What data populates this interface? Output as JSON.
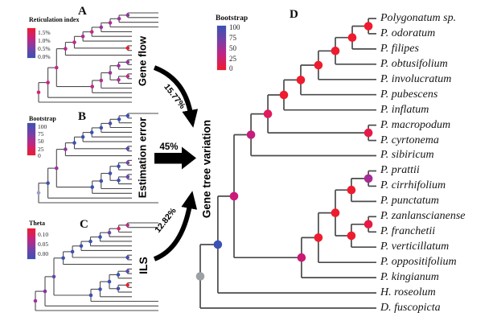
{
  "figure": {
    "center_label": "Gene tree variation",
    "colors": {
      "tree_line": "#4b4b4b",
      "arrow": "#000000",
      "scale_high_blue": "#3b51b4",
      "scale_mid_purple": "#7b3fa5",
      "scale_mid_magenta": "#c32482",
      "scale_low_red": "#ee1c2e",
      "root_gray": "#9da0a3"
    },
    "arrows": {
      "gene_flow": {
        "label": "15.77%"
      },
      "estimation_error": {
        "label": "45%"
      },
      "ils": {
        "label": "12.82%"
      }
    },
    "panels": {
      "a": {
        "letter": "A",
        "side_label": "Gene flow",
        "legend": {
          "title": "Reticulation index",
          "ticks": [
            "1.5%",
            "1.0%",
            "0.5%",
            "0.0%"
          ],
          "top_color": "#ee1c2e",
          "bottom_color": "#3b51b4"
        }
      },
      "b": {
        "letter": "B",
        "side_label": "Estimation error",
        "legend": {
          "title": "Bootstrap",
          "ticks": [
            "100",
            "75",
            "50",
            "25",
            "0"
          ],
          "top_color": "#3b51b4",
          "bottom_color": "#ee1c2e"
        }
      },
      "c": {
        "letter": "C",
        "side_label": "ILS",
        "legend": {
          "title": "Theta",
          "ticks": [
            "0.10",
            "0.05",
            "0.00"
          ],
          "top_color": "#ee1c2e",
          "bottom_color": "#3b51b4"
        }
      },
      "d": {
        "letter": "D",
        "legend": {
          "title": "Bootstrap",
          "ticks": [
            "100",
            "75",
            "50",
            "25",
            "0"
          ],
          "top_color": "#3b51b4",
          "bottom_color": "#ee1c2e"
        },
        "species": [
          "Polygonatum sp.",
          "P. odoratum",
          "P. filipes",
          "P. obtusifolium",
          "P. involucratum",
          "P. pubescens",
          "P. inflatum",
          "P. macropodum",
          "P. cyrtonema",
          "P. sibiricum",
          "P. prattii",
          "P. cirrhifolium",
          "P. punctatum",
          "P. zanlanscianense",
          "P. franchetii",
          "P. verticillatum",
          "P. oppositifolium",
          "P. kingianum",
          "H. roseolum",
          "D. fuscopicta"
        ]
      }
    },
    "chart_data": {
      "type": "phylogenetic-tree",
      "tip_count": 20,
      "note": "Rectangular cladogram shared by panels A-D. Tips indexed 0-19 top to bottom (names in panels.d.species). Internal nodes listed root-last; c = child indices (tips 0-19, internal 20+), x = relative depth (0 root, 1 tips).",
      "topology": {
        "tip_count": 20,
        "nodes": [
          {
            "c": [
              0,
              1
            ],
            "x": 0.955
          },
          {
            "c": [
              20,
              2
            ],
            "x": 0.863
          },
          {
            "c": [
              21,
              3
            ],
            "x": 0.767
          },
          {
            "c": [
              22,
              4
            ],
            "x": 0.671
          },
          {
            "c": [
              23,
              5
            ],
            "x": 0.571
          },
          {
            "c": [
              24,
              6
            ],
            "x": 0.475
          },
          {
            "c": [
              7,
              8
            ],
            "x": 0.955
          },
          {
            "c": [
              25,
              26
            ],
            "x": 0.384
          },
          {
            "c": [
              27,
              9
            ],
            "x": 0.288
          },
          {
            "c": [
              10,
              11
            ],
            "x": 0.955
          },
          {
            "c": [
              29,
              12
            ],
            "x": 0.858
          },
          {
            "c": [
              13,
              14
            ],
            "x": 0.955
          },
          {
            "c": [
              31,
              15
            ],
            "x": 0.858
          },
          {
            "c": [
              30,
              32
            ],
            "x": 0.767
          },
          {
            "c": [
              33,
              16
            ],
            "x": 0.671
          },
          {
            "c": [
              34,
              17
            ],
            "x": 0.575
          },
          {
            "c": [
              28,
              35
            ],
            "x": 0.192
          },
          {
            "c": [
              36,
              18
            ],
            "x": 0.1
          },
          {
            "c": [
              37,
              19
            ],
            "x": 0.0
          }
        ]
      },
      "node_colors": {
        "a": [
          "#8e35a2",
          "#a030a0",
          "#b02c96",
          "#a030a0",
          "#c02887",
          "#b02c96",
          "#ee1c2e",
          "#c02887",
          "#b82c90",
          "#8e35a2",
          "#a030a0",
          "#c02887",
          "#b02c96",
          "#a030a0",
          "#b82c90",
          "#c02887",
          "#c4278a",
          "#cc2581",
          "#d42378"
        ],
        "b": [
          "#3b51b4",
          "#3b51b4",
          "#4a4cb2",
          "#3b51b4",
          "#3b51b4",
          "#3b51b4",
          "#5948b0",
          "#3b51b4",
          "#8c3aa0",
          "#7440ab",
          "#3b51b4",
          "#6a44ae",
          "#3b51b4",
          "#3b51b4",
          "#3b51b4",
          "#3b51b4",
          "#a0309b",
          "#3b51b4",
          "#9aa0c8"
        ],
        "c": [
          "#c02887",
          "#d82465",
          "#6a44ae",
          "#3b51b4",
          "#3b51b4",
          "#3b51b4",
          "#4a4cb2",
          "#3b51b4",
          "#3b51b4",
          "#5948b0",
          "#3b51b4",
          "#ee1c2e",
          "#4a4cb2",
          "#3b51b4",
          "#3b51b4",
          "#3b51b4",
          "#6a44ae",
          "#8435a8",
          "#a030a0"
        ],
        "d": [
          "#ee1c2e",
          "#ee1c2e",
          "#ee1c2e",
          "#ee1c2e",
          "#ee1c2e",
          "#ee1c2e",
          "#e61a49",
          "#df1c5c",
          "#c41d7c",
          "#a52c97",
          "#ee1c2e",
          "#e61a42",
          "#ee1c2e",
          "#ee1c2e",
          "#ee1c2e",
          "#c91a74",
          "#cb1a79",
          "#3b51b4",
          "#9da0a3"
        ]
      },
      "contribution_arrows": [
        {
          "source": "Gene flow",
          "value": "15.77%"
        },
        {
          "source": "Estimation error",
          "value": "45%"
        },
        {
          "source": "ILS",
          "value": "12.82%"
        }
      ]
    }
  }
}
